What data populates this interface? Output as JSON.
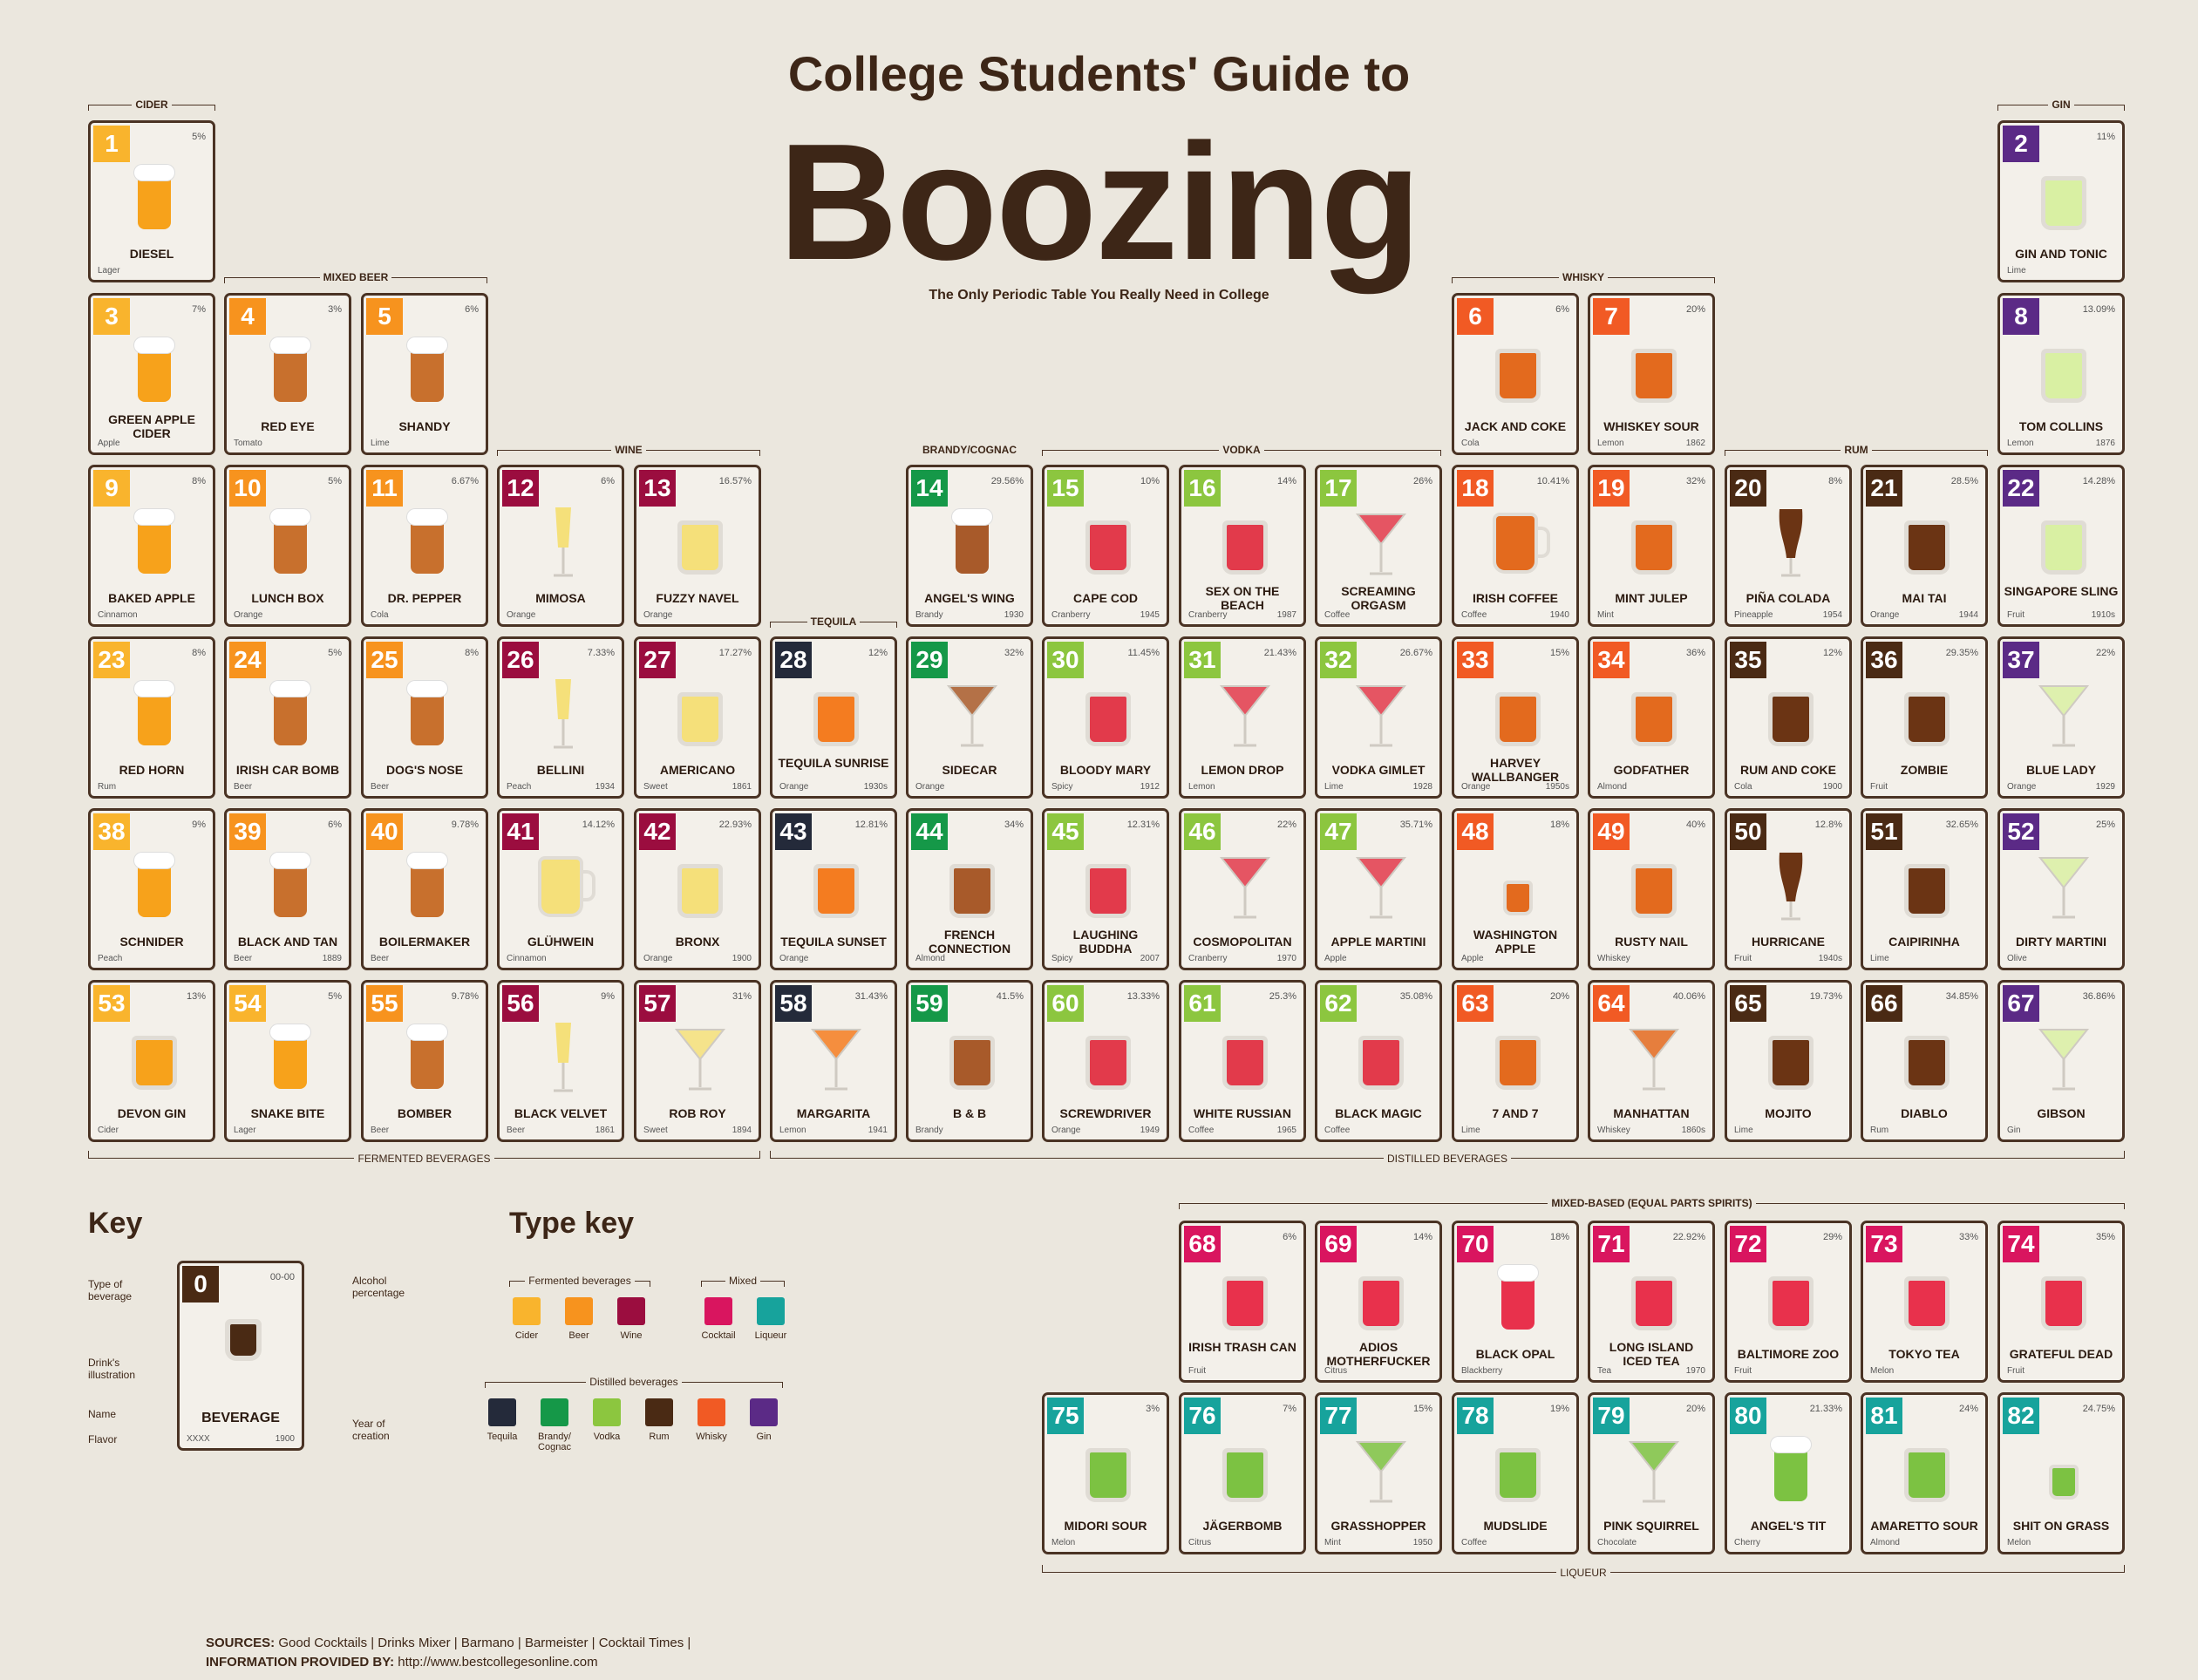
{
  "header": {
    "title_top": "College Students' Guide to",
    "title_big": "Boozing",
    "subtitle": "The Only Periodic Table You Really Need in College"
  },
  "colors": {
    "cider": "#f9b42d",
    "beer": "#f7931e",
    "wine": "#9b0d3f",
    "cocktail": "#d9155f",
    "liqueur": "#17a39c",
    "tequila": "#242a3a",
    "brandy": "#159848",
    "vodka": "#8cc63f",
    "rum": "#4a2a14",
    "whisky": "#f15a24",
    "gin": "#5b2a86"
  },
  "elements": [
    {
      "n": "1",
      "pct": "5%",
      "name": "DIESEL",
      "flavor": "Lager",
      "year": "",
      "type": "cider",
      "glass": "beer"
    },
    {
      "n": "2",
      "pct": "11%",
      "name": "GIN AND TONIC",
      "flavor": "Lime",
      "year": "",
      "type": "gin",
      "glass": "tumbler"
    },
    {
      "n": "3",
      "pct": "7%",
      "name": "GREEN APPLE CIDER",
      "flavor": "Apple",
      "year": "",
      "type": "cider",
      "glass": "pint"
    },
    {
      "n": "4",
      "pct": "3%",
      "name": "RED EYE",
      "flavor": "Tomato",
      "year": "",
      "type": "beer",
      "glass": "beer"
    },
    {
      "n": "5",
      "pct": "6%",
      "name": "SHANDY",
      "flavor": "Lime",
      "year": "",
      "type": "beer",
      "glass": "beer"
    },
    {
      "n": "6",
      "pct": "6%",
      "name": "JACK AND COKE",
      "flavor": "Cola",
      "year": "",
      "type": "whisky",
      "glass": "tumbler"
    },
    {
      "n": "7",
      "pct": "20%",
      "name": "WHISKEY SOUR",
      "flavor": "Lemon",
      "year": "1862",
      "type": "whisky",
      "glass": "tumbler"
    },
    {
      "n": "8",
      "pct": "13.09%",
      "name": "TOM COLLINS",
      "flavor": "Lemon",
      "year": "1876",
      "type": "gin",
      "glass": "tumbler"
    },
    {
      "n": "9",
      "pct": "8%",
      "name": "BAKED APPLE",
      "flavor": "Cinnamon",
      "year": "",
      "type": "cider",
      "glass": "pint"
    },
    {
      "n": "10",
      "pct": "5%",
      "name": "LUNCH BOX",
      "flavor": "Orange",
      "year": "",
      "type": "beer",
      "glass": "beer"
    },
    {
      "n": "11",
      "pct": "6.67%",
      "name": "DR. PEPPER",
      "flavor": "Cola",
      "year": "",
      "type": "beer",
      "glass": "beer"
    },
    {
      "n": "12",
      "pct": "6%",
      "name": "MIMOSA",
      "flavor": "Orange",
      "year": "",
      "type": "wine",
      "glass": "flute"
    },
    {
      "n": "13",
      "pct": "16.57%",
      "name": "FUZZY NAVEL",
      "flavor": "Orange",
      "year": "",
      "type": "wine",
      "glass": "tumbler"
    },
    {
      "n": "14",
      "pct": "29.56%",
      "name": "ANGEL'S WING",
      "flavor": "Brandy",
      "year": "1930",
      "type": "brandy",
      "glass": "pint"
    },
    {
      "n": "15",
      "pct": "10%",
      "name": "CAPE COD",
      "flavor": "Cranberry",
      "year": "1945",
      "type": "vodka",
      "glass": "tumbler"
    },
    {
      "n": "16",
      "pct": "14%",
      "name": "SEX ON THE BEACH",
      "flavor": "Cranberry",
      "year": "1987",
      "type": "vodka",
      "glass": "tumbler"
    },
    {
      "n": "17",
      "pct": "26%",
      "name": "SCREAMING ORGASM",
      "flavor": "Coffee",
      "year": "",
      "type": "vodka",
      "glass": "martini"
    },
    {
      "n": "18",
      "pct": "10.41%",
      "name": "IRISH COFFEE",
      "flavor": "Coffee",
      "year": "1940",
      "type": "whisky",
      "glass": "mug"
    },
    {
      "n": "19",
      "pct": "32%",
      "name": "MINT JULEP",
      "flavor": "Mint",
      "year": "",
      "type": "whisky",
      "glass": "tumbler"
    },
    {
      "n": "20",
      "pct": "8%",
      "name": "PIÑA COLADA",
      "flavor": "Pineapple",
      "year": "1954",
      "type": "rum",
      "glass": "hurricane"
    },
    {
      "n": "21",
      "pct": "28.5%",
      "name": "MAI TAI",
      "flavor": "Orange",
      "year": "1944",
      "type": "rum",
      "glass": "tumbler"
    },
    {
      "n": "22",
      "pct": "14.28%",
      "name": "SINGAPORE SLING",
      "flavor": "Fruit",
      "year": "1910s",
      "type": "gin",
      "glass": "tumbler"
    },
    {
      "n": "23",
      "pct": "8%",
      "name": "RED HORN",
      "flavor": "Rum",
      "year": "",
      "type": "cider",
      "glass": "pint"
    },
    {
      "n": "24",
      "pct": "5%",
      "name": "IRISH CAR BOMB",
      "flavor": "Beer",
      "year": "",
      "type": "beer",
      "glass": "beer"
    },
    {
      "n": "25",
      "pct": "8%",
      "name": "DOG'S NOSE",
      "flavor": "Beer",
      "year": "",
      "type": "beer",
      "glass": "pint"
    },
    {
      "n": "26",
      "pct": "7.33%",
      "name": "BELLINI",
      "flavor": "Peach",
      "year": "1934",
      "type": "wine",
      "glass": "flute"
    },
    {
      "n": "27",
      "pct": "17.27%",
      "name": "AMERICANO",
      "flavor": "Sweet",
      "year": "1861",
      "type": "wine",
      "glass": "tumbler"
    },
    {
      "n": "28",
      "pct": "12%",
      "name": "TEQUILA SUNRISE",
      "flavor": "Orange",
      "year": "1930s",
      "type": "tequila",
      "glass": "tumbler"
    },
    {
      "n": "29",
      "pct": "32%",
      "name": "SIDECAR",
      "flavor": "Orange",
      "year": "",
      "type": "brandy",
      "glass": "martini"
    },
    {
      "n": "30",
      "pct": "11.45%",
      "name": "BLOODY MARY",
      "flavor": "Spicy",
      "year": "1912",
      "type": "vodka",
      "glass": "tumbler"
    },
    {
      "n": "31",
      "pct": "21.43%",
      "name": "LEMON DROP",
      "flavor": "Lemon",
      "year": "",
      "type": "vodka",
      "glass": "martini"
    },
    {
      "n": "32",
      "pct": "26.67%",
      "name": "VODKA GIMLET",
      "flavor": "Lime",
      "year": "1928",
      "type": "vodka",
      "glass": "martini"
    },
    {
      "n": "33",
      "pct": "15%",
      "name": "HARVEY WALLBANGER",
      "flavor": "Orange",
      "year": "1950s",
      "type": "whisky",
      "glass": "tumbler"
    },
    {
      "n": "34",
      "pct": "36%",
      "name": "GODFATHER",
      "flavor": "Almond",
      "year": "",
      "type": "whisky",
      "glass": "tumbler"
    },
    {
      "n": "35",
      "pct": "12%",
      "name": "RUM AND COKE",
      "flavor": "Cola",
      "year": "1900",
      "type": "rum",
      "glass": "tumbler"
    },
    {
      "n": "36",
      "pct": "29.35%",
      "name": "ZOMBIE",
      "flavor": "Fruit",
      "year": "",
      "type": "rum",
      "glass": "tumbler"
    },
    {
      "n": "37",
      "pct": "22%",
      "name": "BLUE LADY",
      "flavor": "Orange",
      "year": "1929",
      "type": "gin",
      "glass": "martini"
    },
    {
      "n": "38",
      "pct": "9%",
      "name": "SCHNIDER",
      "flavor": "Peach",
      "year": "",
      "type": "cider",
      "glass": "beer"
    },
    {
      "n": "39",
      "pct": "6%",
      "name": "BLACK AND TAN",
      "flavor": "Beer",
      "year": "1889",
      "type": "beer",
      "glass": "pint"
    },
    {
      "n": "40",
      "pct": "9.78%",
      "name": "BOILERMAKER",
      "flavor": "Beer",
      "year": "",
      "type": "beer",
      "glass": "pint"
    },
    {
      "n": "41",
      "pct": "14.12%",
      "name": "GLÜHWEIN",
      "flavor": "Cinnamon",
      "year": "",
      "type": "wine",
      "glass": "mug"
    },
    {
      "n": "42",
      "pct": "22.93%",
      "name": "BRONX",
      "flavor": "Orange",
      "year": "1900",
      "type": "wine",
      "glass": "tumbler"
    },
    {
      "n": "43",
      "pct": "12.81%",
      "name": "TEQUILA SUNSET",
      "flavor": "Orange",
      "year": "",
      "type": "tequila",
      "glass": "tumbler"
    },
    {
      "n": "44",
      "pct": "34%",
      "name": "FRENCH CONNECTION",
      "flavor": "Almond",
      "year": "",
      "type": "brandy",
      "glass": "tumbler"
    },
    {
      "n": "45",
      "pct": "12.31%",
      "name": "LAUGHING BUDDHA",
      "flavor": "Spicy",
      "year": "2007",
      "type": "vodka",
      "glass": "tumbler"
    },
    {
      "n": "46",
      "pct": "22%",
      "name": "COSMOPOLITAN",
      "flavor": "Cranberry",
      "year": "1970",
      "type": "vodka",
      "glass": "martini"
    },
    {
      "n": "47",
      "pct": "35.71%",
      "name": "APPLE MARTINI",
      "flavor": "Apple",
      "year": "",
      "type": "vodka",
      "glass": "martini"
    },
    {
      "n": "48",
      "pct": "18%",
      "name": "WASHINGTON APPLE",
      "flavor": "Apple",
      "year": "",
      "type": "whisky",
      "glass": "shot"
    },
    {
      "n": "49",
      "pct": "40%",
      "name": "RUSTY NAIL",
      "flavor": "Whiskey",
      "year": "",
      "type": "whisky",
      "glass": "tumbler"
    },
    {
      "n": "50",
      "pct": "12.8%",
      "name": "HURRICANE",
      "flavor": "Fruit",
      "year": "1940s",
      "type": "rum",
      "glass": "hurricane"
    },
    {
      "n": "51",
      "pct": "32.65%",
      "name": "CAIPIRINHA",
      "flavor": "Lime",
      "year": "",
      "type": "rum",
      "glass": "tumbler"
    },
    {
      "n": "52",
      "pct": "25%",
      "name": "DIRTY MARTINI",
      "flavor": "Olive",
      "year": "",
      "type": "gin",
      "glass": "martini"
    },
    {
      "n": "53",
      "pct": "13%",
      "name": "DEVON GIN",
      "flavor": "Cider",
      "year": "",
      "type": "cider",
      "glass": "tumbler"
    },
    {
      "n": "54",
      "pct": "5%",
      "name": "SNAKE BITE",
      "flavor": "Lager",
      "year": "",
      "type": "cider",
      "glass": "beer"
    },
    {
      "n": "55",
      "pct": "9.78%",
      "name": "BOMBER",
      "flavor": "Beer",
      "year": "",
      "type": "beer",
      "glass": "beer"
    },
    {
      "n": "56",
      "pct": "9%",
      "name": "BLACK VELVET",
      "flavor": "Beer",
      "year": "1861",
      "type": "wine",
      "glass": "flute"
    },
    {
      "n": "57",
      "pct": "31%",
      "name": "ROB ROY",
      "flavor": "Sweet",
      "year": "1894",
      "type": "wine",
      "glass": "martini"
    },
    {
      "n": "58",
      "pct": "31.43%",
      "name": "MARGARITA",
      "flavor": "Lemon",
      "year": "1941",
      "type": "tequila",
      "glass": "martini"
    },
    {
      "n": "59",
      "pct": "41.5%",
      "name": "B & B",
      "flavor": "Brandy",
      "year": "",
      "type": "brandy",
      "glass": "tumbler"
    },
    {
      "n": "60",
      "pct": "13.33%",
      "name": "SCREWDRIVER",
      "flavor": "Orange",
      "year": "1949",
      "type": "vodka",
      "glass": "tumbler"
    },
    {
      "n": "61",
      "pct": "25.3%",
      "name": "WHITE RUSSIAN",
      "flavor": "Coffee",
      "year": "1965",
      "type": "vodka",
      "glass": "tumbler"
    },
    {
      "n": "62",
      "pct": "35.08%",
      "name": "BLACK MAGIC",
      "flavor": "Coffee",
      "year": "",
      "type": "vodka",
      "glass": "tumbler"
    },
    {
      "n": "63",
      "pct": "20%",
      "name": "7 AND 7",
      "flavor": "Lime",
      "year": "",
      "type": "whisky",
      "glass": "tumbler"
    },
    {
      "n": "64",
      "pct": "40.06%",
      "name": "MANHATTAN",
      "flavor": "Whiskey",
      "year": "1860s",
      "type": "whisky",
      "glass": "martini"
    },
    {
      "n": "65",
      "pct": "19.73%",
      "name": "MOJITO",
      "flavor": "Lime",
      "year": "",
      "type": "rum",
      "glass": "tumbler"
    },
    {
      "n": "66",
      "pct": "34.85%",
      "name": "DIABLO",
      "flavor": "Rum",
      "year": "",
      "type": "rum",
      "glass": "tumbler"
    },
    {
      "n": "67",
      "pct": "36.86%",
      "name": "GIBSON",
      "flavor": "Gin",
      "year": "",
      "type": "gin",
      "glass": "martini"
    },
    {
      "n": "68",
      "pct": "6%",
      "name": "IRISH TRASH CAN",
      "flavor": "Fruit",
      "year": "",
      "type": "cocktail",
      "glass": "tumbler"
    },
    {
      "n": "69",
      "pct": "14%",
      "name": "ADIOS MOTHERFUCKER",
      "flavor": "Citrus",
      "year": "",
      "type": "cocktail",
      "glass": "tumbler"
    },
    {
      "n": "70",
      "pct": "18%",
      "name": "BLACK OPAL",
      "flavor": "Blackberry",
      "year": "",
      "type": "cocktail",
      "glass": "pint"
    },
    {
      "n": "71",
      "pct": "22.92%",
      "name": "LONG ISLAND ICED TEA",
      "flavor": "Tea",
      "year": "1970",
      "type": "cocktail",
      "glass": "tumbler"
    },
    {
      "n": "72",
      "pct": "29%",
      "name": "BALTIMORE ZOO",
      "flavor": "Fruit",
      "year": "",
      "type": "cocktail",
      "glass": "tumbler"
    },
    {
      "n": "73",
      "pct": "33%",
      "name": "TOKYO TEA",
      "flavor": "Melon",
      "year": "",
      "type": "cocktail",
      "glass": "tumbler"
    },
    {
      "n": "74",
      "pct": "35%",
      "name": "GRATEFUL DEAD",
      "flavor": "Fruit",
      "year": "",
      "type": "cocktail",
      "glass": "tumbler"
    },
    {
      "n": "75",
      "pct": "3%",
      "name": "MIDORI SOUR",
      "flavor": "Melon",
      "year": "",
      "type": "liqueur",
      "glass": "tumbler"
    },
    {
      "n": "76",
      "pct": "7%",
      "name": "JÄGERBOMB",
      "flavor": "Citrus",
      "year": "",
      "type": "liqueur",
      "glass": "tumbler"
    },
    {
      "n": "77",
      "pct": "15%",
      "name": "GRASSHOPPER",
      "flavor": "Mint",
      "year": "1950",
      "type": "liqueur",
      "glass": "martini"
    },
    {
      "n": "78",
      "pct": "19%",
      "name": "MUDSLIDE",
      "flavor": "Coffee",
      "year": "",
      "type": "liqueur",
      "glass": "tumbler"
    },
    {
      "n": "79",
      "pct": "20%",
      "name": "PINK SQUIRREL",
      "flavor": "Chocolate",
      "year": "",
      "type": "liqueur",
      "glass": "martini"
    },
    {
      "n": "80",
      "pct": "21.33%",
      "name": "ANGEL'S TIT",
      "flavor": "Cherry",
      "year": "",
      "type": "liqueur",
      "glass": "pint"
    },
    {
      "n": "81",
      "pct": "24%",
      "name": "AMARETTO SOUR",
      "flavor": "Almond",
      "year": "",
      "type": "liqueur",
      "glass": "tumbler"
    },
    {
      "n": "82",
      "pct": "24.75%",
      "name": "SHIT ON GRASS",
      "flavor": "Melon",
      "year": "",
      "type": "liqueur",
      "glass": "shot"
    }
  ],
  "groups": {
    "cider": "CIDER",
    "gin": "GIN",
    "mixed_beer": "MIXED BEER",
    "whisky": "WHISKY",
    "wine": "WINE",
    "brandy": "BRANDY/COGNAC",
    "vodka": "VODKA",
    "rum": "RUM",
    "tequila": "TEQUILA",
    "fermented": "FERMENTED BEVERAGES",
    "distilled": "DISTILLED BEVERAGES",
    "mixed_based": "MIXED-BASED (EQUAL PARTS SPIRITS)",
    "liqueur": "LIQUEUR"
  },
  "key": {
    "title": "Key",
    "type_title": "Type key",
    "sample_number": "0",
    "sample_pct": "00-00",
    "sample_name": "BEVERAGE",
    "sample_flavor": "XXXX",
    "sample_year": "1900",
    "lbl_type": "Type of beverage",
    "lbl_illustration": "Drink's illustration",
    "lbl_name": "Name",
    "lbl_flavor": "Flavor",
    "lbl_alcohol": "Alcohol percentage",
    "lbl_year": "Year of creation",
    "fermented_label": "Fermented beverages",
    "mixed_label": "Mixed",
    "distilled_label": "Distilled beverages",
    "fermented": [
      "Cider",
      "Beer",
      "Wine"
    ],
    "mixed": [
      "Cocktail",
      "Liqueur"
    ],
    "distilled": [
      "Tequila",
      "Brandy/ Cognac",
      "Vodka",
      "Rum",
      "Whisky",
      "Gin"
    ]
  },
  "footer": {
    "sources_label": "SOURCES:",
    "sources": "Good Cocktails | Drinks Mixer | Barmano | Barmeister | Cocktail Times |",
    "info_label": "INFORMATION PROVIDED BY:",
    "info": "http://www.bestcollegesonline.com"
  }
}
